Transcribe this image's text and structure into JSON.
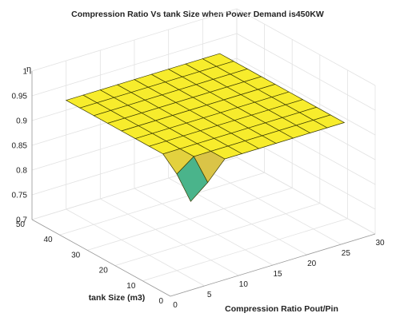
{
  "chart_data": {
    "type": "surface",
    "title": "Compression Ratio Vs tank Size when Power Demand is450KW",
    "xlabel": "Compression Ratio Pout/Pin",
    "ylabel": "tank Size (m3)",
    "zlabel": "η",
    "xlim": [
      0,
      30
    ],
    "ylim": [
      0,
      50
    ],
    "zlim": [
      0.7,
      1.0
    ],
    "xticks": [
      "0",
      "5",
      "10",
      "15",
      "20",
      "25",
      "30"
    ],
    "yticks": [
      "0",
      "10",
      "20",
      "30",
      "40",
      "50"
    ],
    "zticks": [
      "0.7",
      "0.75",
      "0.8",
      "0.85",
      "0.9",
      "0.95",
      "1"
    ],
    "grid": true,
    "colormap": "parula",
    "x": [
      5,
      7.5,
      10,
      12.5,
      15,
      17.5,
      20,
      22.5,
      25,
      27.5
    ],
    "y": [
      5,
      10,
      15,
      20,
      25,
      30,
      35,
      40,
      45,
      50
    ],
    "z": [
      [
        0.855,
        0.883,
        0.92,
        0.92,
        0.92,
        0.92,
        0.92,
        0.92,
        0.92,
        0.92
      ],
      [
        0.895,
        0.92,
        0.92,
        0.92,
        0.92,
        0.92,
        0.92,
        0.92,
        0.92,
        0.92
      ],
      [
        0.92,
        0.92,
        0.92,
        0.92,
        0.92,
        0.92,
        0.92,
        0.92,
        0.92,
        0.92
      ],
      [
        0.92,
        0.92,
        0.92,
        0.92,
        0.92,
        0.92,
        0.92,
        0.92,
        0.92,
        0.92
      ],
      [
        0.92,
        0.92,
        0.92,
        0.92,
        0.92,
        0.92,
        0.92,
        0.92,
        0.92,
        0.92
      ],
      [
        0.92,
        0.92,
        0.92,
        0.92,
        0.92,
        0.92,
        0.92,
        0.92,
        0.92,
        0.92
      ],
      [
        0.92,
        0.92,
        0.92,
        0.92,
        0.92,
        0.92,
        0.92,
        0.92,
        0.92,
        0.92
      ],
      [
        0.92,
        0.92,
        0.92,
        0.92,
        0.92,
        0.92,
        0.92,
        0.92,
        0.92,
        0.92
      ],
      [
        0.92,
        0.92,
        0.92,
        0.92,
        0.92,
        0.92,
        0.92,
        0.92,
        0.92,
        0.92
      ],
      [
        0.92,
        0.92,
        0.92,
        0.92,
        0.92,
        0.92,
        0.92,
        0.92,
        0.92,
        0.92
      ]
    ]
  },
  "colors": {
    "low": "#2b1f8f",
    "mid_teal": "#2bb897",
    "mid_tan": "#c4a55c",
    "high": "#f7ec2c",
    "edge": "#3a3a00",
    "grid": "#e2e2e2",
    "axis": "#9a9a9a"
  }
}
